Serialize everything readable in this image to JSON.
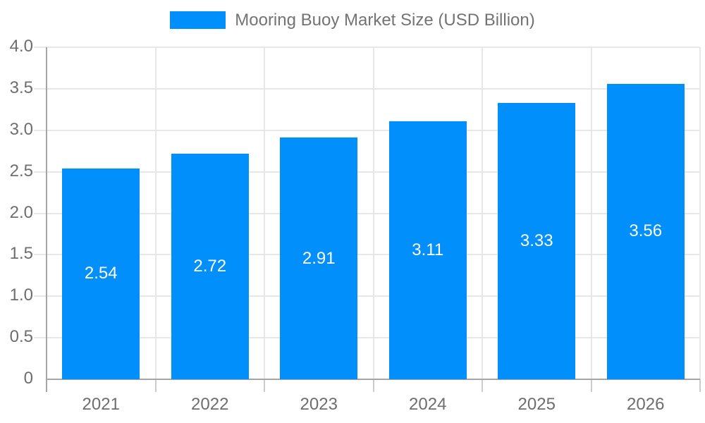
{
  "legend": {
    "label": "Mooring Buoy Market Size (USD Billion)",
    "swatch_color": "#008FFB"
  },
  "chart_data": {
    "type": "bar",
    "title": "Mooring Buoy Market Size (USD Billion)",
    "categories": [
      "2021",
      "2022",
      "2023",
      "2024",
      "2025",
      "2026"
    ],
    "values": [
      2.54,
      2.72,
      2.91,
      3.11,
      3.33,
      3.56
    ],
    "value_labels": [
      "2.54",
      "2.72",
      "2.91",
      "3.11",
      "3.33",
      "3.56"
    ],
    "series": [
      {
        "name": "Mooring Buoy Market Size (USD Billion)",
        "values": [
          2.54,
          2.72,
          2.91,
          3.11,
          3.33,
          3.56
        ]
      }
    ],
    "xlabel": "",
    "ylabel": "",
    "ylim": [
      0,
      4
    ],
    "ytick_step": 0.5,
    "ytick_labels": [
      "0",
      "0.5",
      "1.0",
      "1.5",
      "2.0",
      "2.5",
      "3.0",
      "3.5",
      "4.0"
    ],
    "grid": true,
    "legend_position": "top",
    "bar_color": "#008FFB"
  },
  "colors": {
    "bar": "#008FFB",
    "gridline": "#e7e7e7",
    "axis_line": "#a6a6a6",
    "x_tick": "#cccccc",
    "axis_label_text": "#6e6e6e",
    "legend_text": "#737373",
    "value_label_text": "#ffffff"
  }
}
